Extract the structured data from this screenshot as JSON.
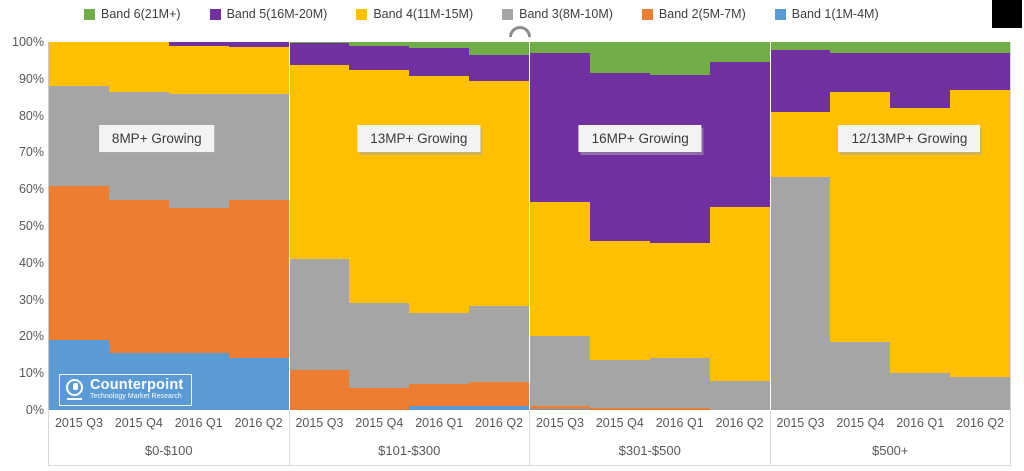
{
  "legend": {
    "items": [
      {
        "label": "Band 6(21M+)",
        "color": "#70AD47"
      },
      {
        "label": "Band 5(16M-20M)",
        "color": "#7030A0"
      },
      {
        "label": "Band 4(11M-15M)",
        "color": "#FFC000"
      },
      {
        "label": "Band 3(8M-10M)",
        "color": "#A5A5A5"
      },
      {
        "label": "Band 2(5M-7M)",
        "color": "#ED7D31"
      },
      {
        "label": "Band 1(1M-4M)",
        "color": "#5B9BD5"
      }
    ]
  },
  "logo": {
    "name": "Counterpoint",
    "tagline": "Technology Market Research"
  },
  "chart_data": {
    "type": "bar",
    "subtype": "100%-stacked-column",
    "title": "",
    "xlabel": "",
    "ylabel": "",
    "ylim": [
      0,
      100
    ],
    "grid": false,
    "legend_position": "top",
    "y_ticks": [
      "100%",
      "90%",
      "80%",
      "70%",
      "60%",
      "50%",
      "40%",
      "30%",
      "20%",
      "10%",
      "0%"
    ],
    "stack_order_bottom_to_top": [
      {
        "name": "Band 1(1M-4M)",
        "color": "#5B9BD5"
      },
      {
        "name": "Band 2(5M-7M)",
        "color": "#ED7D31"
      },
      {
        "name": "Band 3(8M-10M)",
        "color": "#A5A5A5"
      },
      {
        "name": "Band 4(11M-15M)",
        "color": "#FFC000"
      },
      {
        "name": "Band 5(16M-20M)",
        "color": "#7030A0"
      },
      {
        "name": "Band 6(21M+)",
        "color": "#70AD47"
      }
    ],
    "quarters": [
      "2015 Q3",
      "2015 Q4",
      "2016 Q1",
      "2016 Q2"
    ],
    "groups": [
      {
        "label": "$0-$100",
        "annotation": "8MP+ Growing",
        "columns": [
          [
            19,
            42,
            27,
            12,
            0,
            0
          ],
          [
            15.5,
            41.5,
            29.5,
            13.5,
            0,
            0
          ],
          [
            15.5,
            39.5,
            31,
            13,
            1,
            0
          ],
          [
            14,
            43,
            29,
            12.7,
            1.3,
            0
          ]
        ]
      },
      {
        "label": "$101-$300",
        "annotation": "13MP+ Growing",
        "columns": [
          [
            0,
            11,
            30,
            52.7,
            6,
            0.3
          ],
          [
            0,
            6,
            23,
            63.3,
            6.7,
            1
          ],
          [
            1,
            6,
            19.5,
            64.4,
            7.5,
            1.6
          ],
          [
            1,
            6.5,
            20.8,
            61,
            7.3,
            3.4
          ]
        ]
      },
      {
        "label": "$301-$500",
        "annotation": "16MP+ Growing",
        "columns": [
          [
            0.4,
            0.6,
            19,
            36.6,
            40.4,
            3
          ],
          [
            0,
            0.5,
            13,
            32.4,
            45.7,
            8.4
          ],
          [
            0,
            0.5,
            13.6,
            31.3,
            45.6,
            9
          ],
          [
            0,
            0,
            8,
            47.2,
            39.4,
            5.4
          ]
        ]
      },
      {
        "label": "$500+",
        "annotation": "12/13MP+ Growing",
        "columns": [
          [
            0,
            0,
            63.3,
            17.7,
            16.8,
            2.2
          ],
          [
            0,
            0,
            18.5,
            67.9,
            10.6,
            3
          ],
          [
            0,
            0,
            10,
            72,
            15,
            3
          ],
          [
            0,
            0,
            9,
            78,
            10,
            3
          ]
        ]
      }
    ]
  }
}
